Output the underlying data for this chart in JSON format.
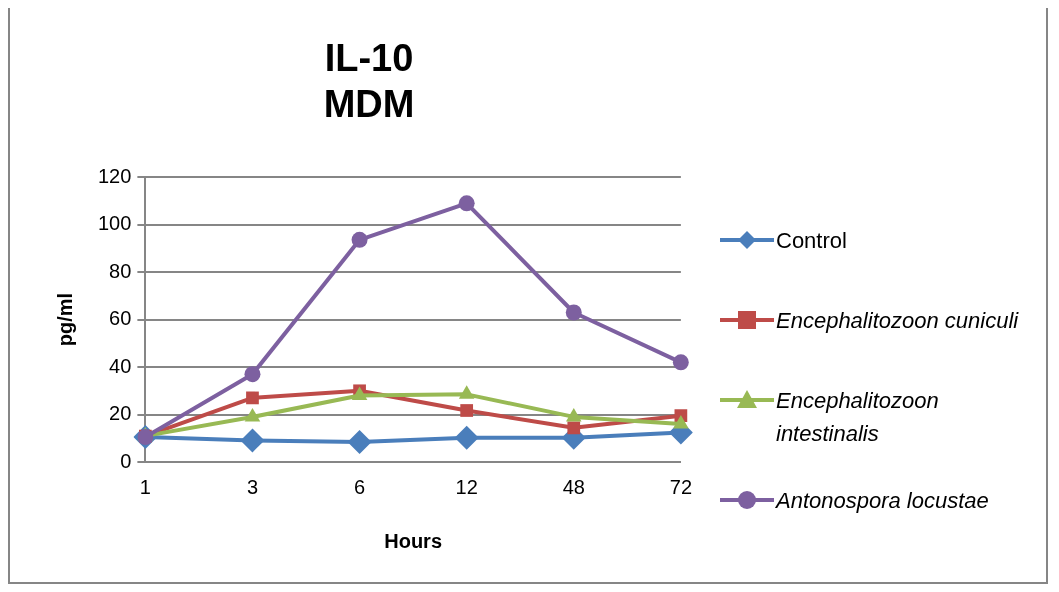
{
  "chart_data": {
    "type": "line",
    "title": "IL-10\nMDM",
    "xlabel": "Hours",
    "ylabel": "pg/ml",
    "categories": [
      "1",
      "3",
      "6",
      "12",
      "48",
      "72"
    ],
    "series": [
      {
        "name": "Control",
        "color": "#4a7ebb",
        "marker": "diamond",
        "values": [
          10.5,
          9.1,
          8.4,
          10.2,
          10.2,
          12.4
        ]
      },
      {
        "name": "Encephalitozoon cuniculi",
        "color": "#be4b48",
        "marker": "square",
        "values": [
          10.9,
          27,
          30,
          21.7,
          14.4,
          19.5
        ]
      },
      {
        "name": "Encephalitozoon intestinalis",
        "color": "#98b954",
        "marker": "triangle",
        "values": [
          11,
          19,
          28,
          28.5,
          19,
          16
        ]
      },
      {
        "name": "Antonospora locustae",
        "color": "#7d60a0",
        "marker": "circle",
        "values": [
          10.5,
          37,
          93.6,
          109,
          63,
          42
        ]
      }
    ],
    "ylim": [
      0,
      120
    ],
    "yticks": [
      0,
      20,
      40,
      60,
      80,
      100,
      120
    ],
    "grid": "y",
    "legend": "right"
  }
}
